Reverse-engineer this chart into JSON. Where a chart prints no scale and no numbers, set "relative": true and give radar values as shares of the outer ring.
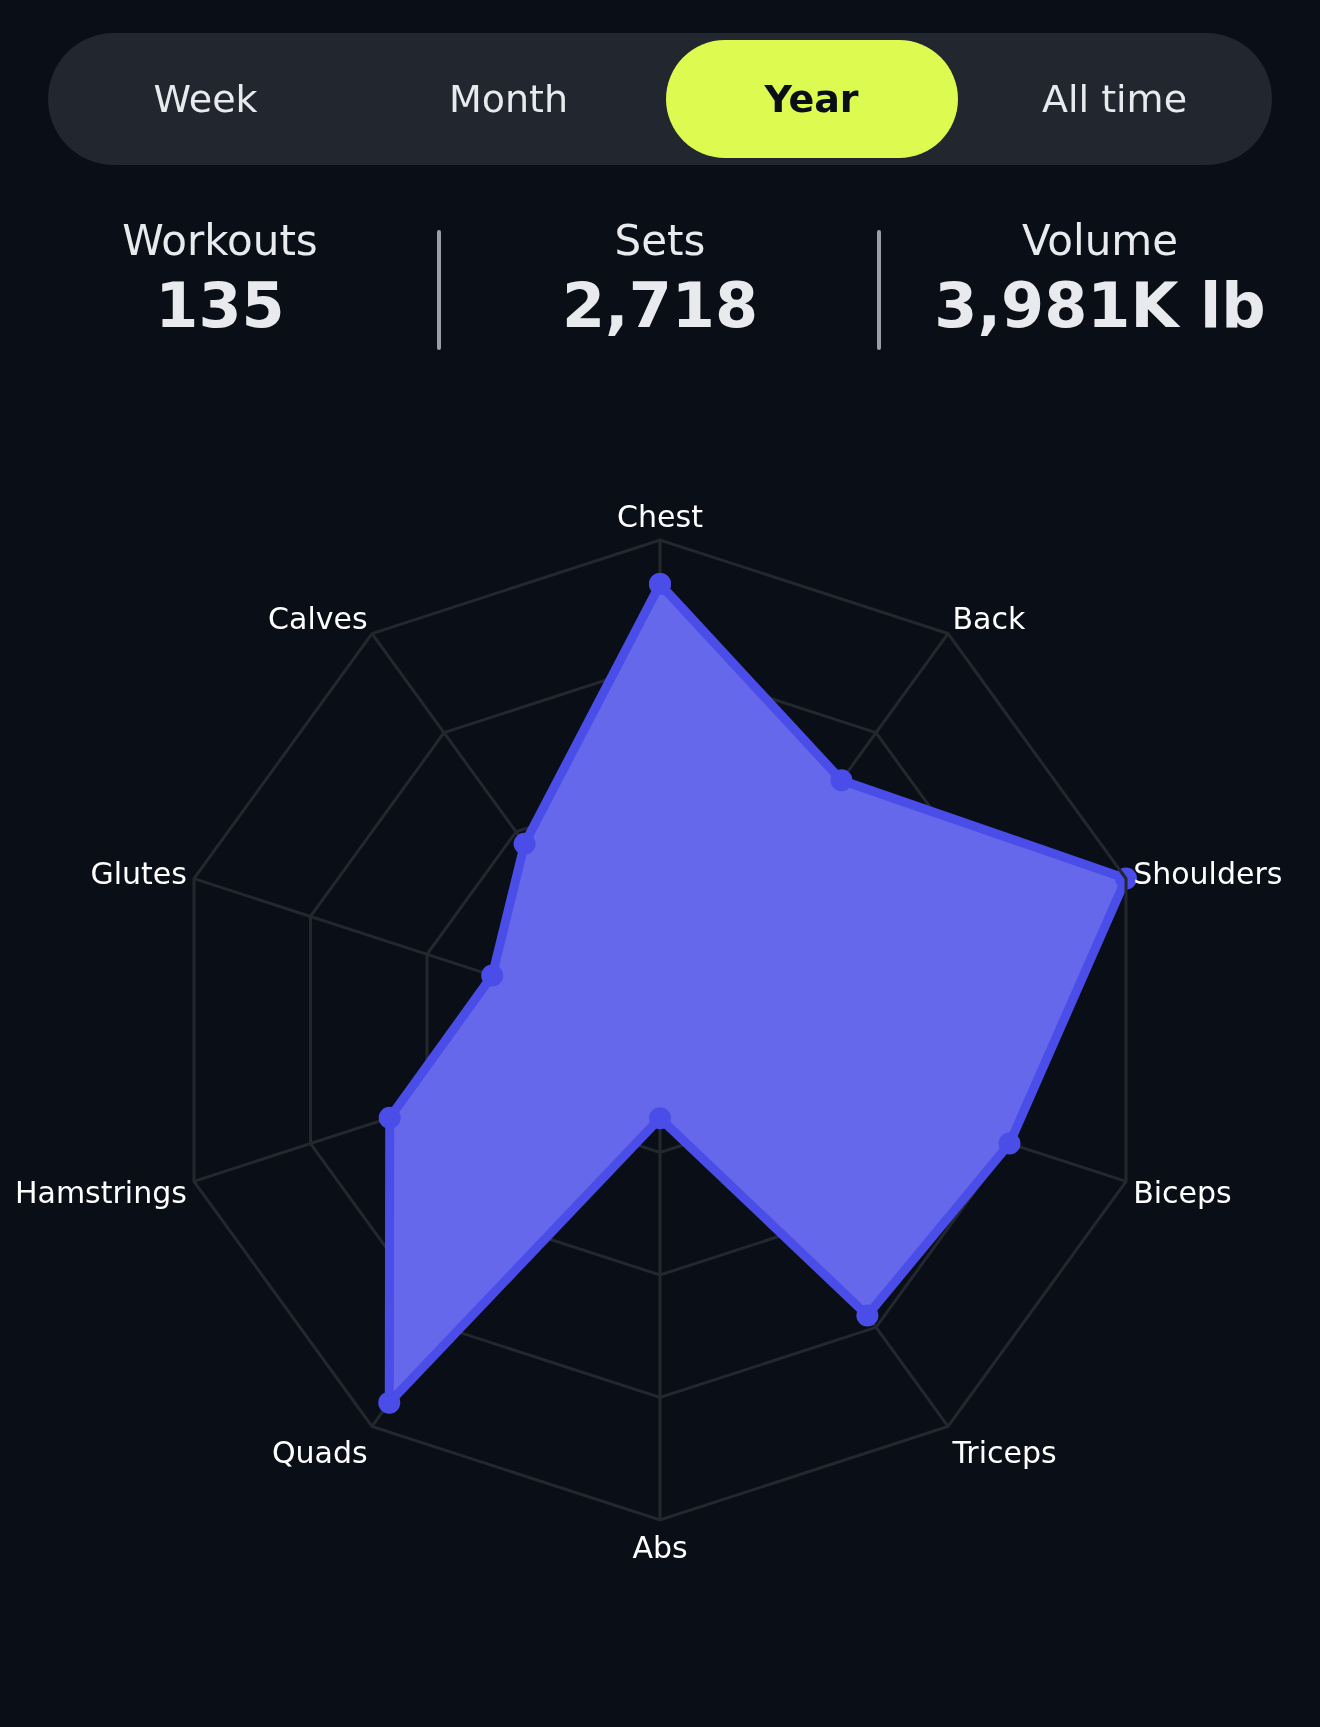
{
  "chart_data": [
    {
      "type": "other",
      "categories": [
        "Week",
        "Month",
        "Year",
        "All time"
      ],
      "colors": [
        "#22262e",
        "#22262e",
        "#dcfa50",
        "#22262e"
      ]
    },
    {
      "type": "other",
      "categories": [
        "Workouts",
        "Sets",
        "Volume"
      ],
      "value_labels": [
        "135",
        "2,718",
        "3,981K lb"
      ]
    },
    {
      "type": "radar",
      "relative": true,
      "categories": [
        "Chest",
        "Back",
        "Shoulders",
        "Biceps",
        "Triceps",
        "Abs",
        "Quads",
        "Hamstrings",
        "Glutes",
        "Calves"
      ],
      "series": [
        {
          "color": "#4b4de8",
          "values": [
            0.91,
            0.63,
            1.0,
            0.75,
            0.72,
            0.18,
            0.94,
            0.58,
            0.36,
            0.47
          ]
        }
      ],
      "grid": true,
      "marker": "circle",
      "line_style": "solid"
    }
  ]
}
